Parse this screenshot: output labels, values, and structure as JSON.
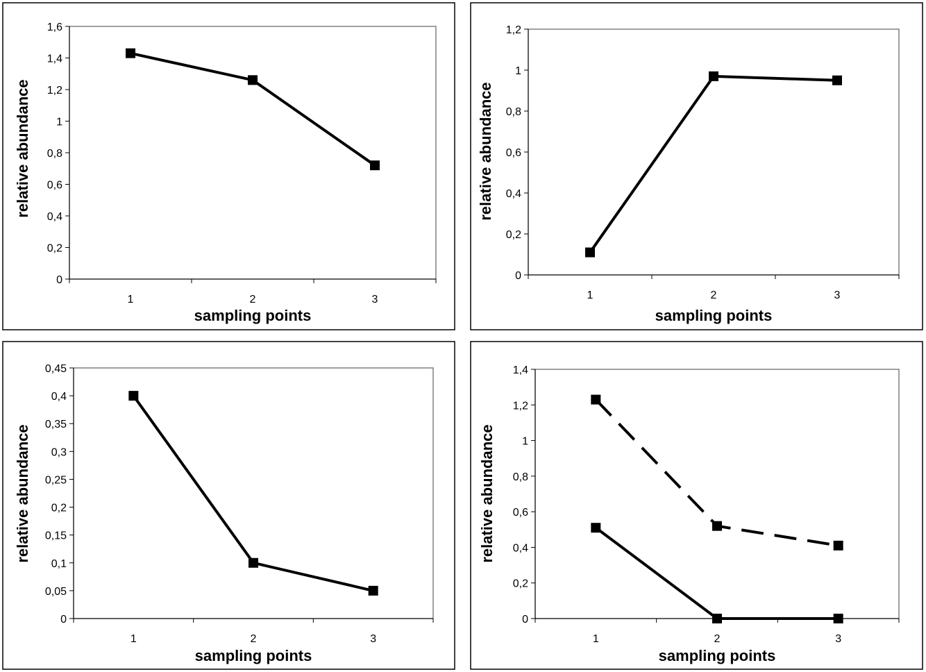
{
  "chart_data": [
    {
      "type": "line",
      "position": "top-left",
      "xlabel": "sampling points",
      "ylabel": "relative abundance",
      "categories": [
        "1",
        "2",
        "3"
      ],
      "ylim": [
        0,
        1.6
      ],
      "ystep": 0.2,
      "decimals": 1,
      "yticks": [
        "0",
        "0,2",
        "0,4",
        "0,6",
        "0,8",
        "1",
        "1,2",
        "1,4",
        "1,6"
      ],
      "grid": false,
      "legend": "none",
      "series": [
        {
          "values": [
            1.43,
            1.26,
            0.72
          ],
          "style": "solid",
          "marker": "square",
          "color": "#000000"
        }
      ]
    },
    {
      "type": "line",
      "position": "top-right",
      "xlabel": "sampling points",
      "ylabel": "relative abundance",
      "categories": [
        "1",
        "2",
        "3"
      ],
      "ylim": [
        0,
        1.2
      ],
      "ystep": 0.2,
      "decimals": 1,
      "yticks": [
        "0",
        "0,2",
        "0,4",
        "0,6",
        "0,8",
        "1",
        "1,2"
      ],
      "grid": false,
      "legend": "none",
      "series": [
        {
          "values": [
            0.11,
            0.97,
            0.95
          ],
          "style": "solid",
          "marker": "square",
          "color": "#000000"
        }
      ]
    },
    {
      "type": "line",
      "position": "bottom-left",
      "xlabel": "sampling points",
      "ylabel": "relative abundance",
      "categories": [
        "1",
        "2",
        "3"
      ],
      "ylim": [
        0,
        0.45
      ],
      "ystep": 0.05,
      "decimals": 2,
      "yticks": [
        "0",
        "0,05",
        "0,1",
        "0,15",
        "0,2",
        "0,25",
        "0,3",
        "0,35",
        "0,4",
        "0,45"
      ],
      "grid": false,
      "legend": "none",
      "series": [
        {
          "values": [
            0.4,
            0.1,
            0.05
          ],
          "style": "solid",
          "marker": "square",
          "color": "#000000"
        }
      ]
    },
    {
      "type": "line",
      "position": "bottom-right",
      "xlabel": "sampling points",
      "ylabel": "relative abundance",
      "categories": [
        "1",
        "2",
        "3"
      ],
      "ylim": [
        0,
        1.4
      ],
      "ystep": 0.2,
      "decimals": 1,
      "yticks": [
        "0",
        "0,2",
        "0,4",
        "0,6",
        "0,8",
        "1",
        "1,2",
        "1,4"
      ],
      "grid": false,
      "legend": "none",
      "series": [
        {
          "values": [
            1.23,
            0.52,
            0.41
          ],
          "style": "dashed",
          "marker": "square",
          "color": "#000000"
        },
        {
          "values": [
            0.51,
            0.0,
            0.0
          ],
          "style": "solid",
          "marker": "square",
          "color": "#000000"
        }
      ]
    }
  ]
}
